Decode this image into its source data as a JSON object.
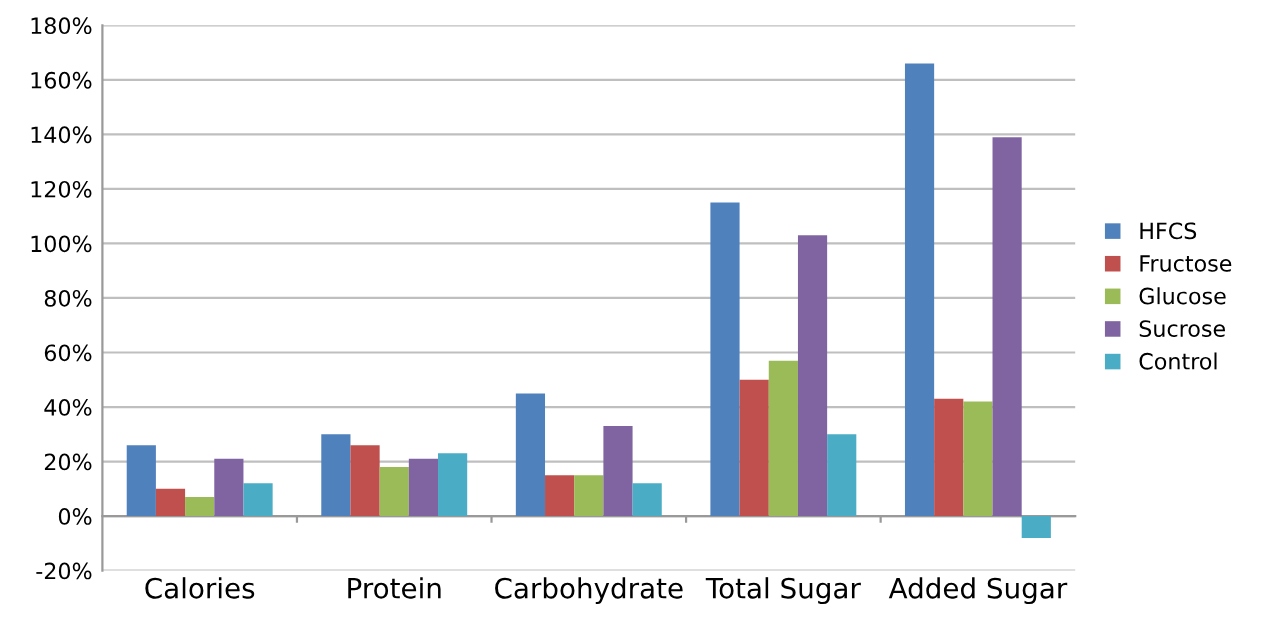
{
  "chart_data": {
    "type": "bar",
    "categories": [
      "Calories",
      "Protein",
      "Carbohydrate",
      "Total Sugar",
      "Added Sugar"
    ],
    "series": [
      {
        "name": "HFCS",
        "color": "#4f81bd",
        "values": [
          26,
          30,
          45,
          115,
          166
        ]
      },
      {
        "name": "Fructose",
        "color": "#c0504d",
        "values": [
          10,
          26,
          15,
          50,
          43
        ]
      },
      {
        "name": "Glucose",
        "color": "#9bbb59",
        "values": [
          7,
          18,
          15,
          57,
          42
        ]
      },
      {
        "name": "Sucrose",
        "color": "#8064a2",
        "values": [
          21,
          21,
          33,
          103,
          139
        ]
      },
      {
        "name": "Control",
        "color": "#4bacc6",
        "values": [
          12,
          23,
          12,
          30,
          -8
        ]
      }
    ],
    "ylim": [
      -20,
      180
    ],
    "yticks": [
      {
        "value": -20,
        "label": "-20%"
      },
      {
        "value": 0,
        "label": "0%"
      },
      {
        "value": 20,
        "label": "20%"
      },
      {
        "value": 40,
        "label": "40%"
      },
      {
        "value": 60,
        "label": "60%"
      },
      {
        "value": 80,
        "label": "80%"
      },
      {
        "value": 100,
        "label": "100%"
      },
      {
        "value": 120,
        "label": "120%"
      },
      {
        "value": 140,
        "label": "140%"
      },
      {
        "value": 160,
        "label": "160%"
      },
      {
        "value": 180,
        "label": "180%"
      }
    ],
    "grid": "y",
    "legend": "right"
  }
}
